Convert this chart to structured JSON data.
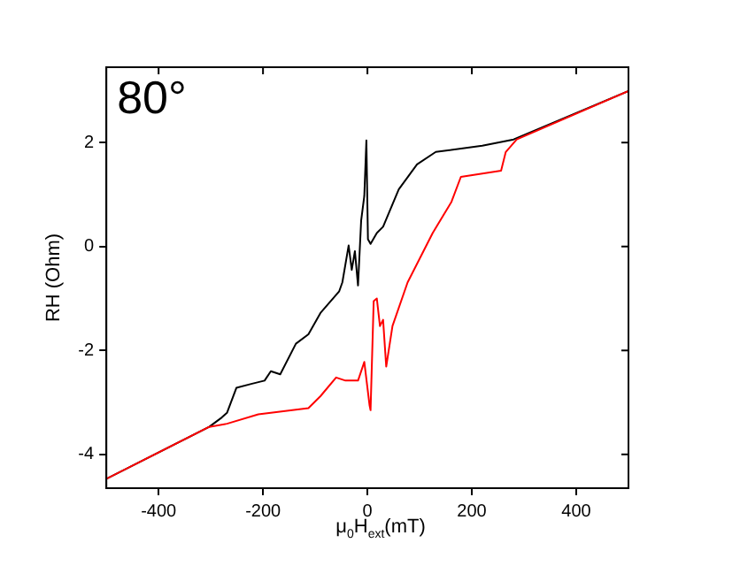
{
  "chart_data": {
    "type": "line",
    "xlabel": "μ$_{0}$H$_{ext}$(mT)",
    "ylabel": "RH (Ohm)",
    "annotations": [
      "80°"
    ],
    "xlim": [
      -500,
      500
    ],
    "xticks": [
      -400,
      -200,
      0,
      200,
      400
    ],
    "ylim": [
      -4.65,
      3.45
    ],
    "yticks": [
      -4,
      -2,
      0,
      2
    ],
    "grid": false,
    "legend": false,
    "marker": "none",
    "line_style": "solid",
    "series": [
      {
        "color": "#000000",
        "x": [
          -500,
          -303,
          -279,
          -269,
          -251,
          -221,
          -197,
          -185,
          -167,
          -137,
          -113,
          -90,
          -54,
          -48,
          -36,
          -30,
          -24,
          -18,
          -12,
          -6,
          -2,
          1,
          6,
          18,
          30,
          60,
          95,
          131,
          220,
          280,
          500
        ],
        "values": [
          -4.47,
          -3.47,
          -3.29,
          -3.2,
          -2.72,
          -2.64,
          -2.58,
          -2.4,
          -2.46,
          -1.87,
          -1.69,
          -1.28,
          -0.86,
          -0.69,
          0.02,
          -0.45,
          -0.09,
          -0.75,
          0.5,
          0.97,
          2.04,
          0.14,
          0.05,
          0.26,
          0.38,
          1.1,
          1.58,
          1.82,
          1.94,
          2.06,
          2.99
        ]
      },
      {
        "color": "#ff0000",
        "x": [
          -500,
          -303,
          -269,
          -209,
          -113,
          -90,
          -60,
          -42,
          -18,
          -6,
          4,
          6,
          12,
          18,
          24,
          30,
          36,
          48,
          77,
          125,
          161,
          179,
          256,
          265,
          286,
          500
        ],
        "values": [
          -4.47,
          -3.47,
          -3.41,
          -3.23,
          -3.11,
          -2.88,
          -2.52,
          -2.58,
          -2.58,
          -2.22,
          -3.05,
          -3.15,
          -1.05,
          -1.0,
          -1.53,
          -1.41,
          -2.31,
          -1.53,
          -0.69,
          0.26,
          0.86,
          1.34,
          1.46,
          1.82,
          2.06,
          2.99
        ]
      }
    ]
  }
}
